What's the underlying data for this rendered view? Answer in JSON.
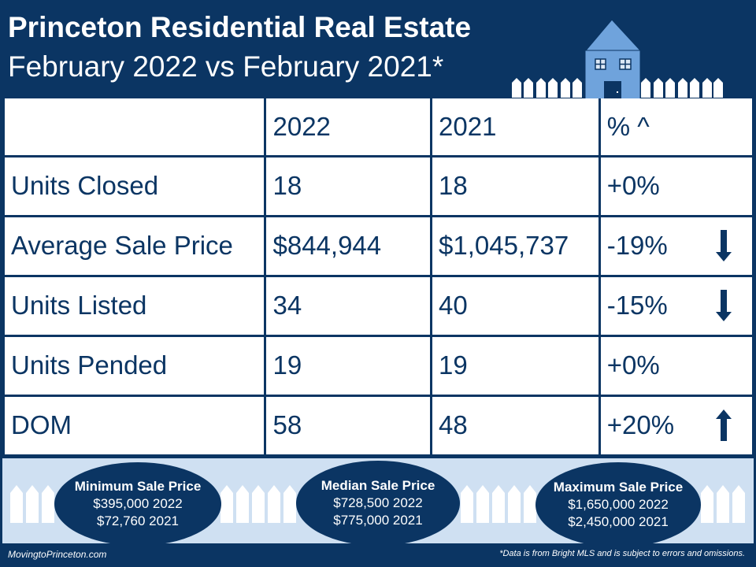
{
  "header": {
    "title": "Princeton Residential Real Estate",
    "subtitle": "February 2022 vs February 2021*"
  },
  "table": {
    "columns": [
      "",
      "2022",
      "2021",
      "% ^"
    ],
    "rows": [
      {
        "label": "Units Closed",
        "v2022": "18",
        "v2021": "18",
        "pct": "+0%",
        "trend": "none"
      },
      {
        "label": "Average Sale Price",
        "v2022": "$844,944",
        "v2021": "$1,045,737",
        "pct": "-19%",
        "trend": "down"
      },
      {
        "label": "Units Listed",
        "v2022": "34",
        "v2021": "40",
        "pct": "-15%",
        "trend": "down"
      },
      {
        "label": "Units Pended",
        "v2022": "19",
        "v2021": "19",
        "pct": "+0%",
        "trend": "none"
      },
      {
        "label": "DOM",
        "v2022": "58",
        "v2021": "48",
        "pct": "+20%",
        "trend": "up"
      }
    ]
  },
  "summary": [
    {
      "title": "Minimum Sale Price",
      "line1": "$395,000  2022",
      "line2": "$72,760  2021"
    },
    {
      "title": "Median Sale Price",
      "line1": "$728,500 2022",
      "line2": "$775,000 2021"
    },
    {
      "title": "Maximum Sale Price",
      "line1": "$1,650,000 2022",
      "line2": "$2,450,000 2021"
    }
  ],
  "footer": {
    "site": "MovingtoPrinceton.com",
    "note": "*Data is from Bright MLS and is subject to errors and omissions."
  },
  "colors": {
    "navy": "#0b3563",
    "house": "#6fa3dc",
    "band": "#cfe0f2"
  }
}
